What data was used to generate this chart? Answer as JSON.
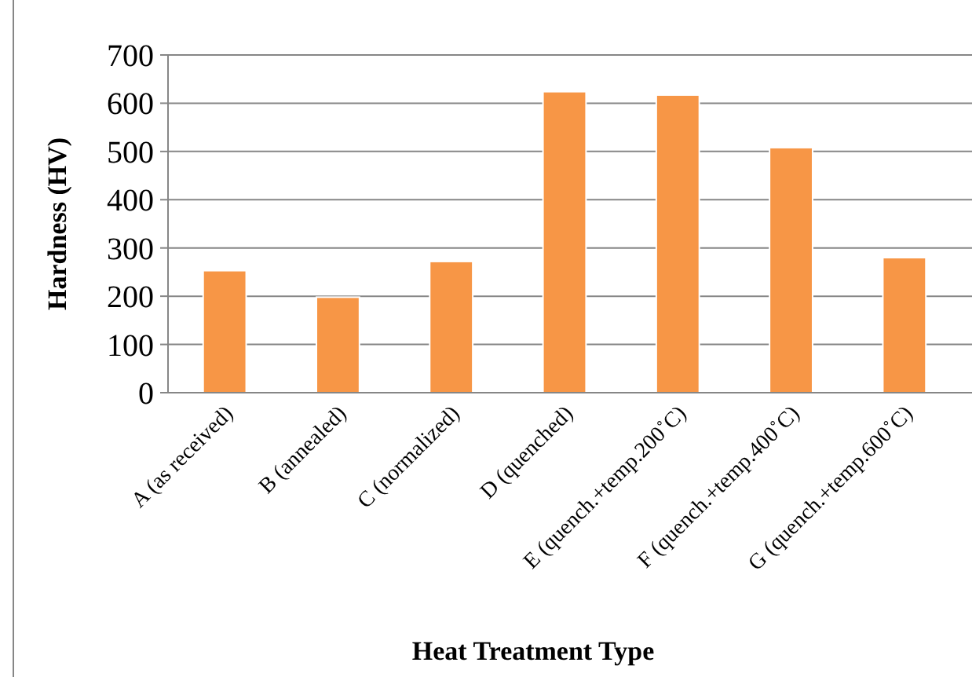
{
  "chart_data": {
    "type": "bar",
    "xlabel": "Heat Treatment Type",
    "ylabel": "Hardness (HV)",
    "categories": [
      "A (as received)",
      "B (annealed)",
      "C (normalized)",
      "D (quenched)",
      "E (quench.+temp.200˚C)",
      "F (quench.+temp.400˚C)",
      "G (quench.+temp.600˚C)"
    ],
    "values": [
      253,
      198,
      272,
      624,
      617,
      508,
      280
    ],
    "color": "#f79646",
    "ylim": [
      0,
      700
    ],
    "yticks": [
      0,
      100,
      200,
      300,
      400,
      500,
      600,
      700
    ],
    "grid": "y"
  }
}
